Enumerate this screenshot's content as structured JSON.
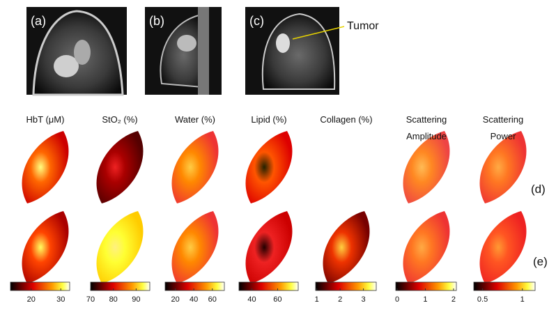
{
  "panels": {
    "a": "(a)",
    "b": "(b)",
    "c": "(c)",
    "annotation": "Tumor"
  },
  "rows": {
    "d": "(d)",
    "e": "(e)"
  },
  "columns": [
    {
      "header": [
        "HbT (μM)"
      ],
      "colorbar": {
        "range": [
          13,
          33
        ],
        "ticks": [
          20,
          30
        ]
      }
    },
    {
      "header": [
        "StO₂ (%)"
      ],
      "colorbar": {
        "range": [
          70,
          96
        ],
        "ticks": [
          70,
          80,
          90
        ]
      }
    },
    {
      "header": [
        "Water (%)"
      ],
      "colorbar": {
        "range": [
          9,
          73
        ],
        "ticks": [
          20,
          40,
          60
        ]
      }
    },
    {
      "header": [
        "Lipid (%)"
      ],
      "colorbar": {
        "range": [
          30,
          76
        ],
        "ticks": [
          40,
          60
        ]
      }
    },
    {
      "header": [
        "Collagen (%)"
      ],
      "colorbar": {
        "range": [
          0.95,
          3.55
        ],
        "ticks": [
          1,
          2,
          3
        ]
      }
    },
    {
      "header": [
        "Scattering",
        "Amplitude"
      ],
      "colorbar": {
        "range": [
          -0.05,
          2.1
        ],
        "ticks": [
          0,
          1,
          2
        ]
      }
    },
    {
      "header": [
        "Scattering",
        "Power"
      ],
      "colorbar": {
        "range": [
          0.39,
          1.16
        ],
        "ticks": [
          0.5,
          1
        ]
      }
    }
  ]
}
